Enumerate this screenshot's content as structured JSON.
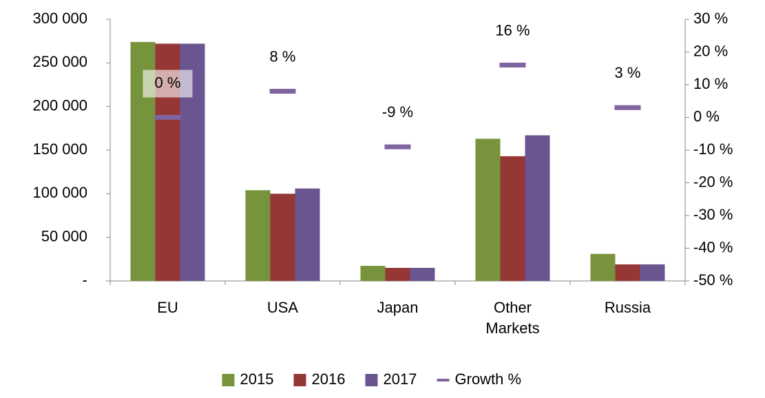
{
  "chart_data": {
    "type": "bar",
    "categories": [
      "EU",
      "USA",
      "Japan",
      "Other Markets",
      "Russia"
    ],
    "series": [
      {
        "name": "2015",
        "color": "#77933c",
        "values": [
          274000,
          104000,
          17300,
          163000,
          31000
        ]
      },
      {
        "name": "2016",
        "color": "#953735",
        "values": [
          272000,
          100000,
          15000,
          143000,
          19000
        ]
      },
      {
        "name": "2017",
        "color": "#6a5590",
        "values": [
          272000,
          106000,
          15000,
          167000,
          19000
        ]
      },
      {
        "name": "Growth %",
        "color": "#8064a2",
        "axis": "y2",
        "values": [
          0,
          8,
          -9,
          16,
          3
        ],
        "value_labels": [
          "0 %",
          "8 %",
          "-9 %",
          "16 %",
          "3 %"
        ]
      }
    ],
    "ylim": [
      0,
      300000
    ],
    "yticks": [
      {
        "value": 0,
        "label": "-"
      },
      {
        "value": 50000,
        "label": "50 000"
      },
      {
        "value": 100000,
        "label": "100 000"
      },
      {
        "value": 150000,
        "label": "150 000"
      },
      {
        "value": 200000,
        "label": "200 000"
      },
      {
        "value": 250000,
        "label": "250 000"
      },
      {
        "value": 300000,
        "label": "300 000"
      }
    ],
    "y2lim": [
      -50,
      30
    ],
    "y2ticks": [
      {
        "value": -50,
        "label": "-50 %"
      },
      {
        "value": -40,
        "label": "-40 %"
      },
      {
        "value": -30,
        "label": "-30 %"
      },
      {
        "value": -20,
        "label": "-20 %"
      },
      {
        "value": -10,
        "label": "-10 %"
      },
      {
        "value": 0,
        "label": "0 %"
      },
      {
        "value": 10,
        "label": "10 %"
      },
      {
        "value": 20,
        "label": "20 %"
      },
      {
        "value": 30,
        "label": "30 %"
      }
    ],
    "legend": "bottom"
  }
}
